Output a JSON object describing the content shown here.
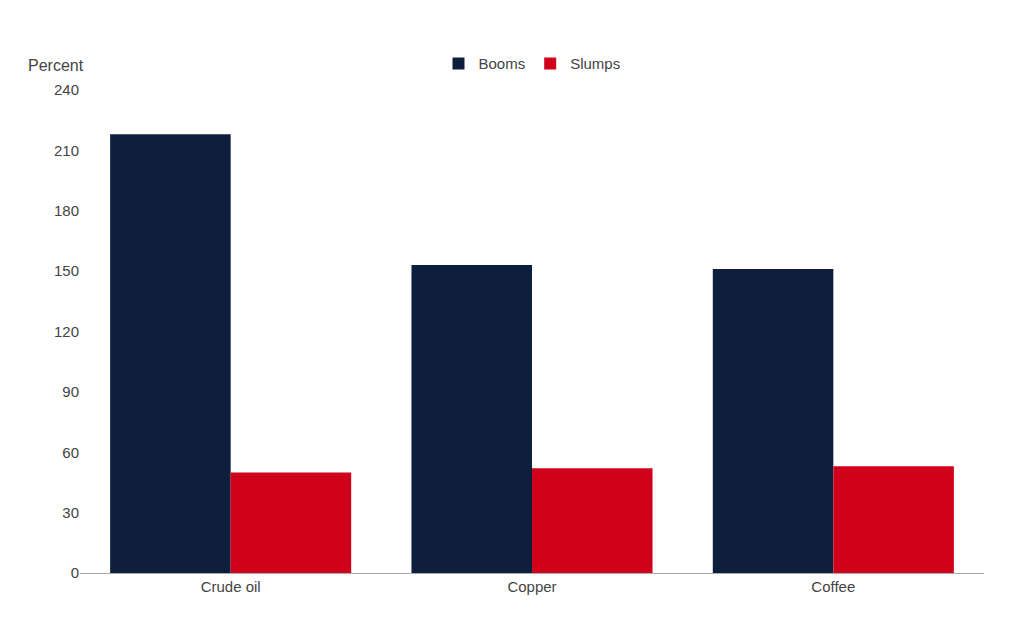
{
  "chart_data": {
    "type": "bar",
    "categories": [
      "Crude oil",
      "Copper",
      "Coffee"
    ],
    "series": [
      {
        "name": "Booms",
        "color": "#0d1f3c",
        "values": [
          218,
          153,
          151
        ]
      },
      {
        "name": "Slumps",
        "color": "#d0021b",
        "values": [
          50,
          52,
          53
        ]
      }
    ],
    "ylabel": "Percent",
    "ylim": [
      0,
      240
    ],
    "yticks": [
      0,
      30,
      60,
      90,
      120,
      150,
      180,
      210,
      240
    ],
    "grid": false,
    "legend": "top"
  }
}
